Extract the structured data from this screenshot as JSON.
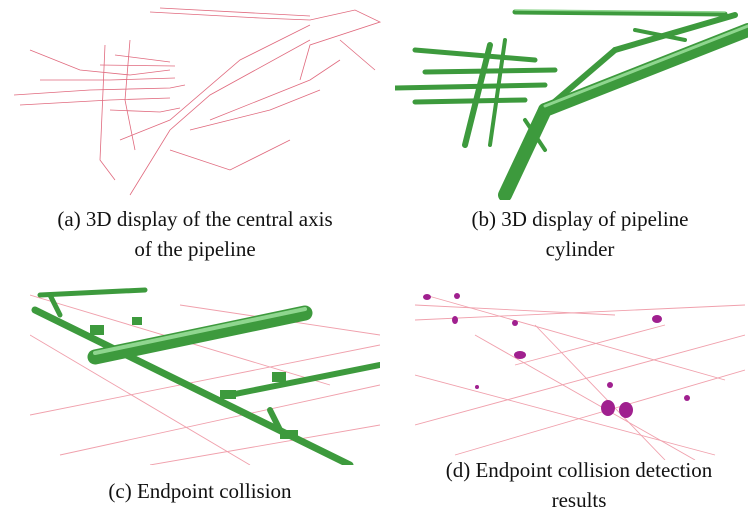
{
  "panels": [
    {
      "caption_lines": [
        "(a) 3D display of the central axis",
        "of the pipeline"
      ]
    },
    {
      "caption_lines": [
        "(b) 3D display of pipeline",
        "cylinder"
      ]
    },
    {
      "caption_lines": [
        "(c) Endpoint collision"
      ]
    },
    {
      "caption_lines": [
        "(d) Endpoint collision detection",
        "results"
      ]
    }
  ]
}
